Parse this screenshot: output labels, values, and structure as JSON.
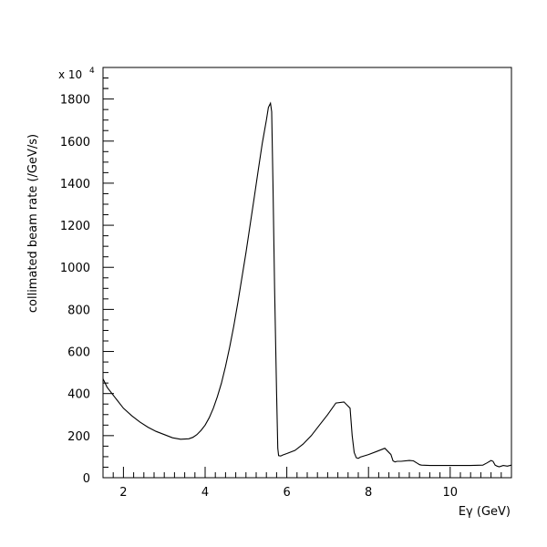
{
  "chart_data": {
    "type": "line",
    "title": "",
    "xlabel": "Eγ (GeV)",
    "ylabel": "collimated beam rate (/GeV/s)",
    "yscale_label": "x 10",
    "yscale_exponent": "4",
    "xlim": [
      1.5,
      11.5
    ],
    "ylim": [
      0,
      1950
    ],
    "x_ticks": [
      2,
      4,
      6,
      8,
      10
    ],
    "y_ticks": [
      0,
      200,
      400,
      600,
      800,
      1000,
      1200,
      1400,
      1600,
      1800
    ],
    "grid": false,
    "line_color": "#000000",
    "series": [
      {
        "x": [
          1.5,
          1.6,
          1.8,
          2.0,
          2.2,
          2.4,
          2.6,
          2.8,
          3.0,
          3.2,
          3.4,
          3.6,
          3.7,
          3.8,
          3.9,
          4.0,
          4.1,
          4.2,
          4.3,
          4.4,
          4.5,
          4.6,
          4.7,
          4.8,
          4.9,
          5.0,
          5.1,
          5.2,
          5.3,
          5.4,
          5.5,
          5.55,
          5.6,
          5.63,
          5.66,
          5.7,
          5.75,
          5.78,
          5.8,
          5.85,
          5.9,
          6.0,
          6.2,
          6.4,
          6.6,
          6.8,
          7.0,
          7.2,
          7.4,
          7.55,
          7.6,
          7.65,
          7.7,
          7.75,
          7.8,
          8.0,
          8.2,
          8.4,
          8.55,
          8.6,
          8.65,
          8.7,
          8.8,
          9.0,
          9.1,
          9.2,
          9.25,
          9.3,
          9.5,
          10.0,
          10.5,
          10.8,
          10.9,
          11.0,
          11.05,
          11.1,
          11.15,
          11.2,
          11.3,
          11.4,
          11.5
        ],
        "y": [
          470,
          430,
          380,
          330,
          295,
          265,
          240,
          220,
          205,
          190,
          183,
          185,
          192,
          205,
          225,
          250,
          285,
          330,
          385,
          450,
          530,
          620,
          720,
          830,
          950,
          1070,
          1200,
          1330,
          1460,
          1590,
          1700,
          1760,
          1780,
          1740,
          1400,
          900,
          400,
          140,
          105,
          103,
          108,
          115,
          130,
          160,
          200,
          250,
          300,
          355,
          360,
          330,
          200,
          120,
          95,
          92,
          98,
          110,
          125,
          140,
          110,
          80,
          75,
          78,
          78,
          82,
          80,
          68,
          62,
          60,
          58,
          58,
          58,
          60,
          70,
          82,
          78,
          60,
          55,
          52,
          58,
          55,
          60
        ]
      }
    ]
  }
}
